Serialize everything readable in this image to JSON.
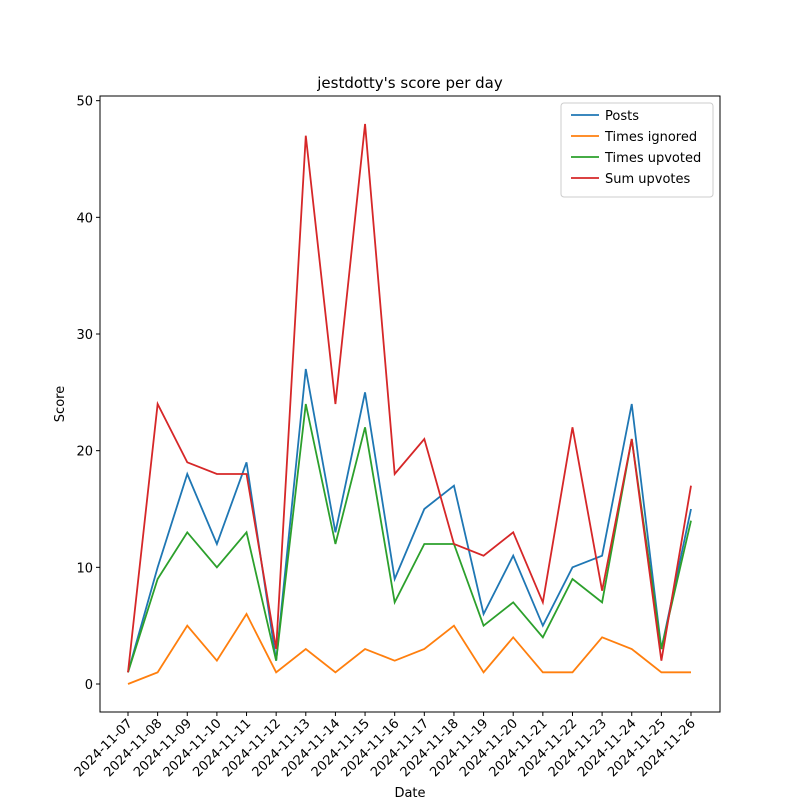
{
  "chart_data": {
    "type": "line",
    "title": "jestdotty's score per day",
    "x_label": "Date",
    "y_label": "Score",
    "categories": [
      "2024-11-07",
      "2024-11-08",
      "2024-11-09",
      "2024-11-10",
      "2024-11-11",
      "2024-11-12",
      "2024-11-13",
      "2024-11-14",
      "2024-11-15",
      "2024-11-16",
      "2024-11-17",
      "2024-11-18",
      "2024-11-19",
      "2024-11-20",
      "2024-11-21",
      "2024-11-22",
      "2024-11-23",
      "2024-11-24",
      "2024-11-25",
      "2024-11-26"
    ],
    "series": [
      {
        "name": "Posts",
        "color": "#1f77b4",
        "values": [
          1,
          10,
          18,
          12,
          19,
          2,
          27,
          13,
          25,
          9,
          15,
          17,
          6,
          11,
          5,
          10,
          11,
          24,
          3,
          15
        ]
      },
      {
        "name": "Times ignored",
        "color": "#ff7f0e",
        "values": [
          0,
          1,
          5,
          2,
          6,
          1,
          3,
          1,
          3,
          2,
          3,
          5,
          1,
          4,
          1,
          1,
          4,
          3,
          1,
          1
        ]
      },
      {
        "name": "Times upvoted",
        "color": "#2ca02c",
        "values": [
          1,
          9,
          13,
          10,
          13,
          2,
          24,
          12,
          22,
          7,
          12,
          12,
          5,
          7,
          4,
          9,
          7,
          21,
          3,
          14
        ]
      },
      {
        "name": "Sum upvotes",
        "color": "#d62728",
        "values": [
          1,
          24,
          19,
          18,
          18,
          3,
          47,
          24,
          48,
          18,
          21,
          12,
          11,
          13,
          7,
          22,
          8,
          21,
          2,
          17
        ]
      }
    ],
    "ylim": [
      -2.4,
      50.4
    ],
    "yticks": [
      0,
      10,
      20,
      30,
      40,
      50
    ],
    "legend": "upper right",
    "grid": false
  }
}
